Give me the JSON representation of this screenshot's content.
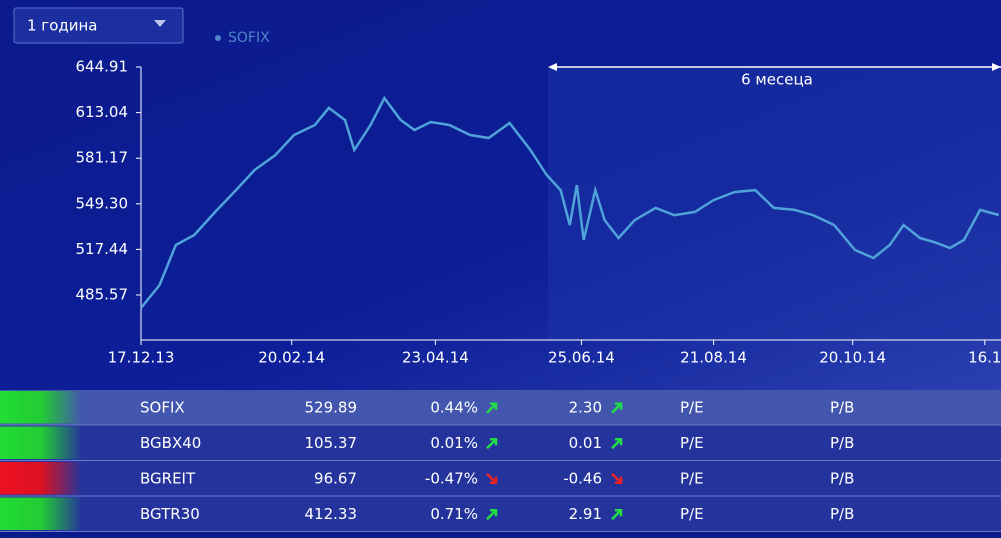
{
  "dropdown": {
    "label": "1 година"
  },
  "chart_data": {
    "type": "line",
    "annotation": "6 месеца",
    "x": [
      "2013-12-17",
      "2013-12-25",
      "2014-01-01",
      "2014-01-09",
      "2014-01-18",
      "2014-01-27",
      "2014-02-04",
      "2014-02-13",
      "2014-02-21",
      "2014-03-02",
      "2014-03-08",
      "2014-03-15",
      "2014-03-19",
      "2014-03-26",
      "2014-04-01",
      "2014-04-08",
      "2014-04-14",
      "2014-04-21",
      "2014-04-29",
      "2014-05-08",
      "2014-05-16",
      "2014-05-25",
      "2014-06-03",
      "2014-06-10",
      "2014-06-16",
      "2014-06-20",
      "2014-06-23",
      "2014-06-26",
      "2014-07-01",
      "2014-07-05",
      "2014-07-11",
      "2014-07-18",
      "2014-07-27",
      "2014-08-04",
      "2014-08-13",
      "2014-08-21",
      "2014-08-30",
      "2014-09-08",
      "2014-09-16",
      "2014-09-25",
      "2014-10-03",
      "2014-10-12",
      "2014-10-21",
      "2014-10-29",
      "2014-11-05",
      "2014-11-11",
      "2014-11-18",
      "2014-11-24",
      "2014-12-01",
      "2014-12-07",
      "2014-12-14",
      "2014-12-22"
    ],
    "series": [
      {
        "name": "SOFIX",
        "color": "#4fa3d9",
        "values": [
          476.5,
          492.5,
          520.5,
          527.5,
          543.6,
          558.9,
          572.9,
          583.4,
          597.4,
          604.4,
          616.3,
          607.9,
          586.9,
          604.4,
          623.2,
          607.9,
          600.9,
          606.5,
          604.4,
          597.4,
          595.3,
          605.8,
          586.9,
          569.4,
          558.9,
          534.5,
          562.4,
          524.0,
          558.9,
          537.9,
          525.4,
          537.9,
          546.4,
          541.3,
          543.6,
          551.9,
          557.5,
          558.9,
          546.4,
          545.0,
          541.3,
          534.5,
          517.0,
          511.4,
          520.5,
          534.5,
          525.4,
          522.6,
          518.4,
          524.0,
          545.0,
          541.5
        ]
      }
    ],
    "xlim": [
      "2013-12-17",
      "2014-12-23"
    ],
    "xticks": [
      {
        "value": "2013-12-17",
        "label": "17.12.13"
      },
      {
        "value": "2014-02-20",
        "label": "20.02.14"
      },
      {
        "value": "2014-04-23",
        "label": "23.04.14"
      },
      {
        "value": "2014-06-25",
        "label": "25.06.14"
      },
      {
        "value": "2014-08-21",
        "label": "21.08.14"
      },
      {
        "value": "2014-10-20",
        "label": "20.10.14"
      },
      {
        "value": "2014-12-16",
        "label": "16.1"
      }
    ],
    "ylim": [
      454.1,
      644.91
    ],
    "yticks": [
      485.57,
      517.44,
      {
        "value": 549.3,
        "label": "549.30"
      },
      581.17,
      613.04,
      644.91
    ]
  },
  "table": {
    "rows": [
      [
        "SOFIX",
        "529.89",
        "0.44%",
        "2.30",
        "P/E",
        "P/B"
      ],
      [
        "BGBX40",
        "105.37",
        "0.01%",
        "0.01",
        "P/E",
        "P/B"
      ],
      [
        "BGREIT",
        "96.67",
        "-0.47%",
        "-0.46",
        "P/E",
        "P/B"
      ],
      [
        "BGTR30",
        "412.33",
        "0.71%",
        "2.91",
        "P/E",
        "P/B"
      ]
    ]
  }
}
